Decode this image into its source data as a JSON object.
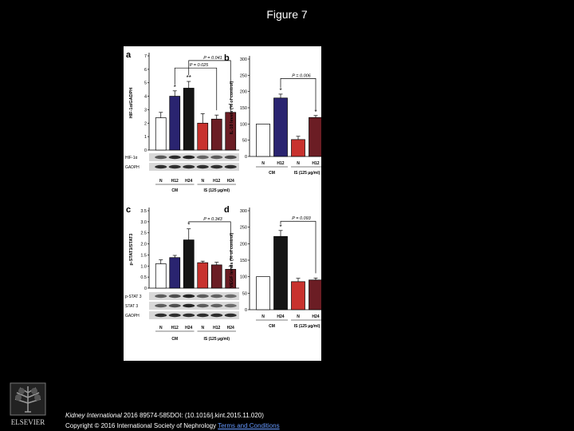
{
  "page": {
    "title": "Figure 7"
  },
  "footer": {
    "journal": "Kidney International",
    "citation": " 2016 89574-585DOI: (10.1016/j.kint.2015.11.020)",
    "copyright": "Copyright © 2016 International Society of Nephrology ",
    "terms": "Terms and Conditions"
  },
  "publisher": {
    "name": "ELSEVIER"
  },
  "colors": {
    "white": "#ffffff",
    "blue": "#2a2470",
    "black": "#151515",
    "red": "#c8322e",
    "darkred": "#6b1d24"
  },
  "chart_data": [
    {
      "panel": "a",
      "type": "bar",
      "ylabel": "HIF-1α/GADPH",
      "ylim": [
        0,
        7
      ],
      "yticks": [
        "0",
        "1",
        "2",
        "3",
        "4",
        "5",
        "6",
        "7"
      ],
      "categories": [
        "N",
        "H12",
        "H24",
        "N",
        "H12",
        "H24"
      ],
      "values": [
        2.4,
        4.0,
        4.6,
        2.0,
        2.3,
        2.8
      ],
      "errors": [
        0.4,
        0.4,
        0.5,
        0.7,
        0.3,
        0.6
      ],
      "colors": [
        "white",
        "blue",
        "black",
        "red",
        "darkred",
        "darkred"
      ],
      "markers": [
        "",
        "*",
        "**",
        "",
        "",
        ""
      ],
      "groups": [
        {
          "label": "CM",
          "from": 0,
          "to": 2
        },
        {
          "label": "IS (125 μg/ml)",
          "from": 3,
          "to": 5
        }
      ],
      "brackets": [
        {
          "label": "P = 0.041",
          "from": 2,
          "to": 5,
          "y": 6.65
        },
        {
          "label": "P = 0.025",
          "from": 1,
          "to": 4,
          "y": 6.1
        }
      ],
      "blots": [
        "HIF-1α",
        "GADPH"
      ]
    },
    {
      "panel": "b",
      "type": "bar",
      "ylabel": "IL-10 levels (% of control)",
      "ylim": [
        0,
        300
      ],
      "yticks": [
        "0",
        "50",
        "100",
        "150",
        "200",
        "250",
        "300"
      ],
      "categories": [
        "N",
        "H12",
        "N",
        "H12"
      ],
      "values": [
        100,
        180,
        52,
        120
      ],
      "errors": [
        0,
        12,
        10,
        6
      ],
      "colors": [
        "white",
        "blue",
        "red",
        "darkred"
      ],
      "markers": [
        "",
        "*",
        "",
        "*"
      ],
      "groups": [
        {
          "label": "CM",
          "from": 0,
          "to": 1
        },
        {
          "label": "IS (125 μg/ml)",
          "from": 2,
          "to": 3
        }
      ],
      "brackets": [
        {
          "label": "P = 0.006",
          "from": 1,
          "to": 3,
          "y": 240
        }
      ],
      "blots": []
    },
    {
      "panel": "c",
      "type": "bar",
      "ylabel": "p-STAT3/STAT3",
      "ylim": [
        0,
        3.5
      ],
      "yticks": [
        "0",
        "0.5",
        "1.0",
        "1.5",
        "2.0",
        "2.5",
        "3.0",
        "3.5"
      ],
      "categories": [
        "N",
        "H12",
        "H24",
        "N",
        "H12",
        "H24"
      ],
      "values": [
        1.1,
        1.38,
        2.18,
        1.15,
        1.05,
        0.85
      ],
      "errors": [
        0.18,
        0.1,
        0.5,
        0.07,
        0.12,
        0.15
      ],
      "colors": [
        "white",
        "blue",
        "black",
        "red",
        "darkred",
        "darkred"
      ],
      "markers": [
        "",
        "",
        "*",
        "",
        "",
        ""
      ],
      "groups": [
        {
          "label": "CM",
          "from": 0,
          "to": 2
        },
        {
          "label": "IS (125 μg/ml)",
          "from": 3,
          "to": 5
        }
      ],
      "brackets": [
        {
          "label": "P = 0.343",
          "from": 2,
          "to": 5,
          "y": 3.0
        }
      ],
      "blots": [
        "p-STAT 3",
        "STAT 3",
        "GADPH"
      ]
    },
    {
      "panel": "d",
      "type": "bar",
      "ylabel": "VEGF levels (% of control)",
      "ylim": [
        0,
        300
      ],
      "yticks": [
        "0",
        "50",
        "100",
        "150",
        "200",
        "250",
        "300"
      ],
      "categories": [
        "N",
        "H24",
        "N",
        "H24"
      ],
      "values": [
        100,
        222,
        85,
        90
      ],
      "errors": [
        0,
        18,
        10,
        6
      ],
      "colors": [
        "white",
        "black",
        "red",
        "darkred"
      ],
      "markers": [
        "",
        "*",
        "",
        ""
      ],
      "groups": [
        {
          "label": "CM",
          "from": 0,
          "to": 1
        },
        {
          "label": "IS (125 μg/ml)",
          "from": 2,
          "to": 3
        }
      ],
      "brackets": [
        {
          "label": "P = 0.093",
          "from": 1,
          "to": 3,
          "y": 268
        }
      ],
      "blots": []
    }
  ]
}
